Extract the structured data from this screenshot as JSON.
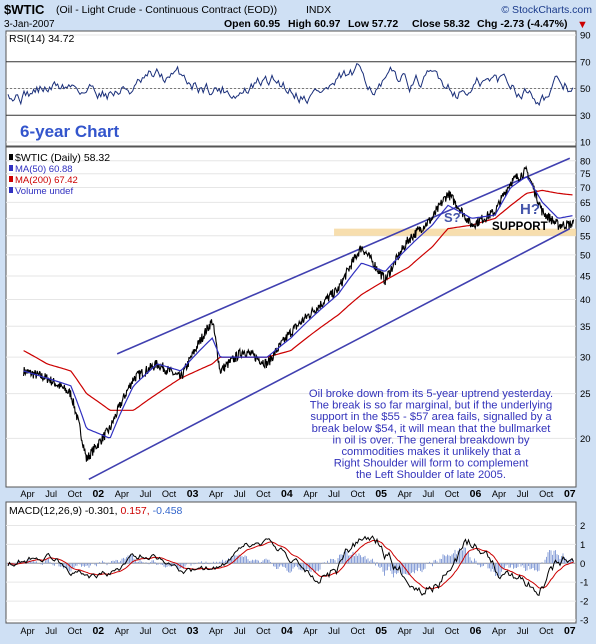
{
  "header": {
    "symbol": "$WTIC",
    "description": "(Oil - Light Crude - Continuous Contract (EOD))",
    "exchange": "INDX",
    "copyright": "© StockCharts.com",
    "date": "3-Jan-2007",
    "open": "Open 60.95",
    "high": "High 60.97",
    "low": "Low 57.72",
    "close": "Close 58.32",
    "chg": "Chg -2.73 (-4.47%)",
    "chg_arrow": "▼"
  },
  "rsi_panel": {
    "label": "RSI(14) 34.72",
    "ticks": [
      "90",
      "70",
      "50",
      "30",
      "10"
    ],
    "annotation": "6-year Chart"
  },
  "price_panel": {
    "legend": [
      {
        "text": "$WTIC (Daily) 58.32",
        "color": "#000000"
      },
      {
        "text": "MA(50) 60.88",
        "color": "#3030c0"
      },
      {
        "text": "MA(200) 67.42",
        "color": "#cc0000"
      },
      {
        "text": "Volume undef",
        "color": "#3030c0"
      }
    ],
    "ticks": [
      "80",
      "75",
      "70",
      "65",
      "60",
      "55",
      "50",
      "45",
      "40",
      "35",
      "30",
      "25",
      "20"
    ],
    "labels": {
      "support": "SUPPORT",
      "head": "H?",
      "shoulder": "S?"
    },
    "note_lines": [
      "Oil broke down from its 5-year uptrend yesterday.",
      "The break is so far marginal, but if the underlying",
      "support in the $55 - $57 area fails, signalled by a",
      "break below $54, it will mean that the bullmarket",
      "in oil is over. The general breakdown by",
      "commodities makes it unlikely that a",
      "Right Shoulder will form to complement",
      "the Left Shoulder of late 2005."
    ]
  },
  "macd_panel": {
    "label_prefix": "MACD(12,26,9)",
    "macd": "-0.301,",
    "signal": "0.157,",
    "histogram": "-0.458",
    "ticks": [
      "2",
      "1",
      "0",
      "-1",
      "-2",
      "-3"
    ]
  },
  "x_axis": [
    "Apr",
    "Jul",
    "Oct",
    "02",
    "Apr",
    "Jul",
    "Oct",
    "03",
    "Apr",
    "Jul",
    "Oct",
    "04",
    "Apr",
    "Jul",
    "Oct",
    "05",
    "Apr",
    "Jul",
    "Oct",
    "06",
    "Apr",
    "Jul",
    "Oct",
    "07"
  ],
  "colors": {
    "background": "#cfe0f4",
    "panel": "#ffffff",
    "price": "#000000",
    "ma50": "#3030c0",
    "ma200": "#cc0000",
    "channel": "#4040b0",
    "support_band": "#f6d8a0",
    "note_text": "#3333bb"
  },
  "chart_data": {
    "type": "line",
    "title": "$WTIC (Oil - Light Crude - Continuous Contract (EOD))",
    "x": [
      "2001-03",
      "2001-06",
      "2001-09",
      "2001-11",
      "2002-02",
      "2002-05",
      "2002-08",
      "2002-11",
      "2003-03",
      "2003-04",
      "2003-07",
      "2003-10",
      "2004-01",
      "2004-04",
      "2004-07",
      "2004-10",
      "2005-01",
      "2005-04",
      "2005-07",
      "2005-09",
      "2005-12",
      "2006-03",
      "2006-05",
      "2006-07",
      "2006-09",
      "2006-11",
      "2007-01"
    ],
    "series": [
      {
        "name": "$WTIC (Daily)",
        "values": [
          28,
          27,
          25,
          18,
          21,
          27,
          29,
          27,
          36,
          28,
          31,
          29,
          34,
          38,
          42,
          52,
          44,
          54,
          60,
          68,
          58,
          62,
          72,
          76,
          62,
          58,
          58.32
        ]
      },
      {
        "name": "MA(50)",
        "values": [
          28,
          27,
          26,
          21,
          20,
          26,
          29,
          28,
          33,
          30,
          30,
          30,
          33,
          37,
          41,
          48,
          46,
          52,
          58,
          64,
          60,
          61,
          70,
          74,
          65,
          60,
          60.88
        ]
      },
      {
        "name": "MA(200)",
        "values": [
          31,
          29,
          28,
          25,
          23,
          23,
          25,
          27,
          29,
          30,
          30,
          30,
          31,
          34,
          37,
          41,
          44,
          47,
          52,
          57,
          58,
          60,
          64,
          68,
          69,
          68,
          67.42
        ]
      }
    ],
    "ylim": [
      16,
      84
    ],
    "log_scale": true,
    "support_band": [
      55,
      57
    ],
    "channel": {
      "upper": [
        [
          2002.2,
          30.5
        ],
        [
          2007.0,
          81
        ]
      ],
      "lower": [
        [
          2001.9,
          16.3
        ],
        [
          2007.0,
          57
        ]
      ]
    },
    "rsi": {
      "label": "RSI(14)",
      "last": 34.72,
      "ylim": [
        10,
        90
      ],
      "levels": [
        70,
        30
      ]
    },
    "macd": {
      "params": "12,26,9",
      "macd": -0.301,
      "signal": 0.157,
      "histogram": -0.458,
      "ylim": [
        -3,
        2.5
      ]
    }
  }
}
